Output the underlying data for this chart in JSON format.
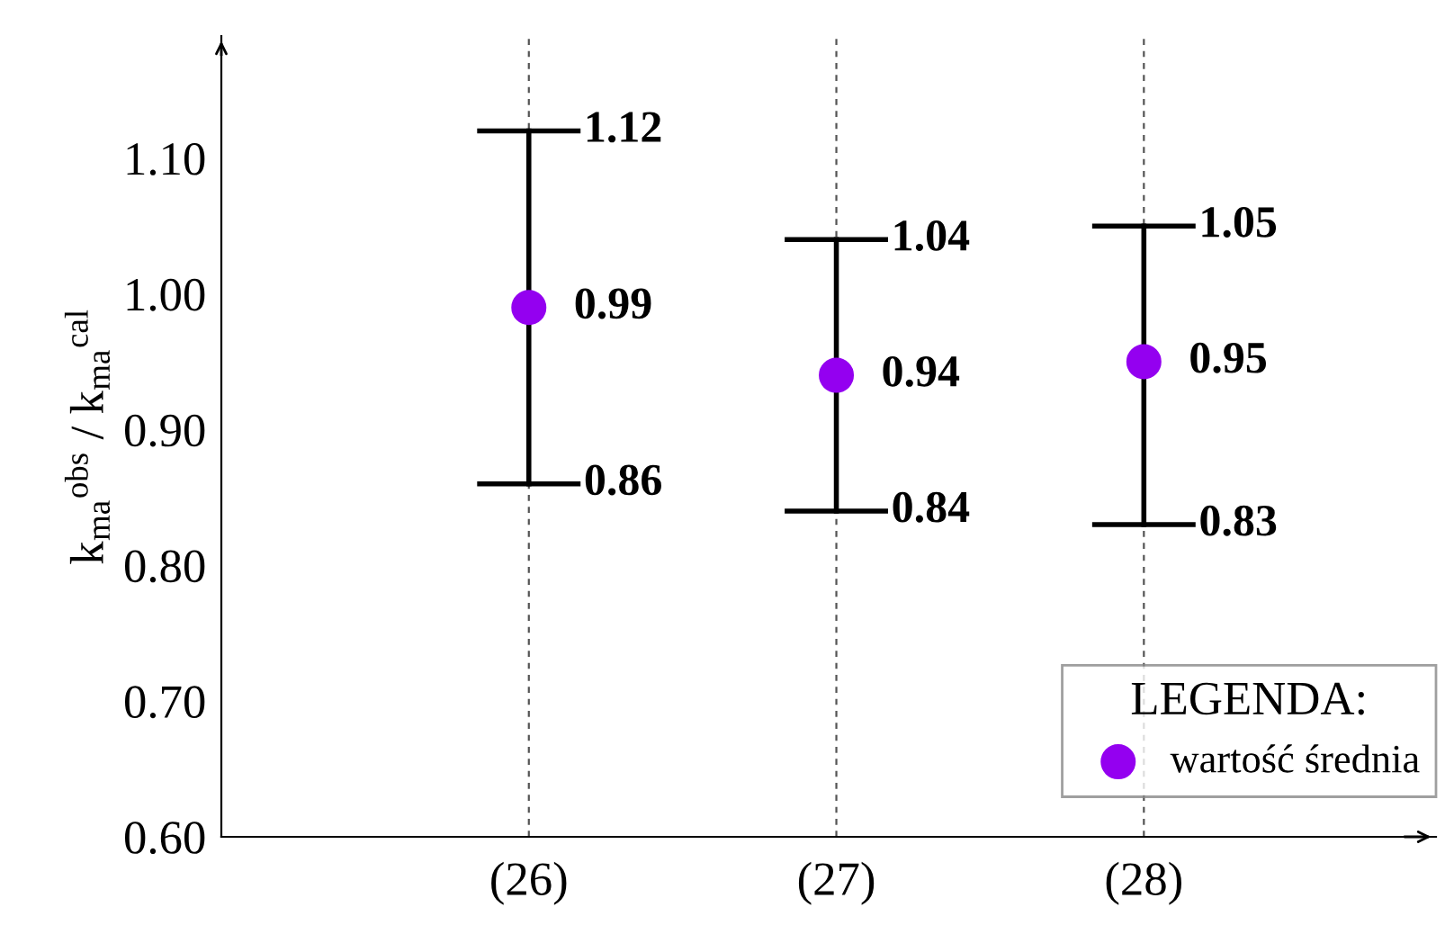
{
  "chart_data": {
    "type": "scatter",
    "ylabel": "k$_{ma}$$^{obs}$ / k$_{ma}$$^{cal}$",
    "legend_title": "LEGENDA:",
    "categories": [
      "(26)",
      "(27)",
      "(28)"
    ],
    "series": [
      {
        "name": "wartość średnia",
        "color": "#9400f0",
        "values": [
          0.99,
          0.94,
          0.95
        ],
        "errors": [
          [
            0.86,
            1.12
          ],
          [
            0.84,
            1.04
          ],
          [
            0.83,
            1.05
          ]
        ]
      }
    ],
    "data_labels": true,
    "annotations": [
      {
        "text": "1.12",
        "x": "(26)",
        "y": 1.12
      },
      {
        "text": "0.86",
        "x": "(26)",
        "y": 0.86
      },
      {
        "text": "1.04",
        "x": "(27)",
        "y": 1.04
      },
      {
        "text": "0.84",
        "x": "(27)",
        "y": 0.84
      },
      {
        "text": "1.05",
        "x": "(28)",
        "y": 1.05
      },
      {
        "text": "0.83",
        "x": "(28)",
        "y": 0.83
      }
    ],
    "ylim": [
      0.6,
      1.19
    ],
    "yticks": [
      {
        "value": 0.6,
        "label": "0.60"
      },
      {
        "value": 0.7,
        "label": "0.70"
      },
      {
        "value": 0.8,
        "label": "0.80"
      },
      {
        "value": 0.9,
        "label": "0.90"
      },
      {
        "value": 1.0,
        "label": "1.00"
      },
      {
        "value": 1.1,
        "label": "1.10"
      }
    ],
    "grid": "x",
    "legend": "bottom right",
    "marker": "circle"
  }
}
